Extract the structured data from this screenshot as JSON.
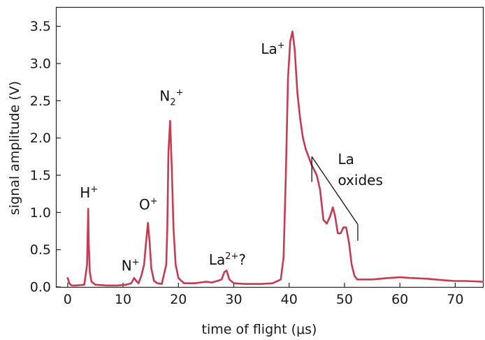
{
  "chart_data": {
    "type": "line",
    "xlabel": "time of flight (μs)",
    "ylabel": "signal amplitude (V)",
    "xlim": [
      -2,
      75
    ],
    "ylim": [
      0,
      3.75
    ],
    "x_ticks": [
      0,
      10,
      20,
      30,
      40,
      50,
      60,
      70
    ],
    "x_tick_labels": [
      "0",
      "10",
      "20",
      "30",
      "40",
      "50",
      "60",
      "70"
    ],
    "y_ticks": [
      0,
      0.5,
      1.0,
      1.5,
      2.0,
      2.5,
      3.0,
      3.5
    ],
    "y_tick_labels": [
      "0.0",
      "0.5",
      "1.0",
      "1.5",
      "2.0",
      "2.5",
      "3.0",
      "3.5"
    ],
    "grid": false,
    "series": [
      {
        "color": "#c83a52",
        "x": [
          0,
          0.3,
          0.7,
          1.5,
          3.0,
          3.5,
          3.7,
          3.8,
          4.0,
          4.3,
          5.0,
          7,
          9,
          10.5,
          11.5,
          12.0,
          12.4,
          12.8,
          13.3,
          13.8,
          14.1,
          14.5,
          14.8,
          15.1,
          15.6,
          16.2,
          17.0,
          17.8,
          18.0,
          18.2,
          18.5,
          18.8,
          19.1,
          19.5,
          20.0,
          21,
          23,
          25,
          26,
          27,
          27.8,
          28.3,
          28.7,
          29.2,
          30,
          32,
          35,
          37,
          38.5,
          39.0,
          39.4,
          39.8,
          40.2,
          40.6,
          41.0,
          41.5,
          42.0,
          42.5,
          43.0,
          44.0,
          45.0,
          45.6,
          46.2,
          46.8,
          47.4,
          47.9,
          48.3,
          48.8,
          49.3,
          49.8,
          50.3,
          50.8,
          51.3,
          51.8,
          52.3,
          53,
          55,
          58,
          60,
          62,
          65,
          68,
          70,
          72,
          75
        ],
        "values": [
          0.12,
          0.05,
          0.02,
          0.02,
          0.03,
          0.3,
          1.05,
          0.6,
          0.2,
          0.07,
          0.03,
          0.02,
          0.02,
          0.03,
          0.05,
          0.12,
          0.08,
          0.05,
          0.15,
          0.3,
          0.55,
          0.86,
          0.6,
          0.25,
          0.08,
          0.05,
          0.04,
          0.3,
          0.8,
          1.8,
          2.23,
          1.6,
          0.8,
          0.3,
          0.12,
          0.05,
          0.05,
          0.07,
          0.06,
          0.08,
          0.1,
          0.2,
          0.22,
          0.1,
          0.05,
          0.04,
          0.04,
          0.05,
          0.1,
          0.4,
          1.5,
          2.8,
          3.3,
          3.43,
          3.2,
          2.6,
          2.25,
          2.0,
          1.85,
          1.65,
          1.5,
          1.3,
          0.9,
          0.85,
          0.95,
          1.07,
          0.95,
          0.72,
          0.72,
          0.8,
          0.8,
          0.6,
          0.3,
          0.15,
          0.1,
          0.1,
          0.1,
          0.12,
          0.13,
          0.12,
          0.11,
          0.09,
          0.08,
          0.08,
          0.07
        ]
      }
    ],
    "annotations": [
      {
        "base": "H",
        "sup": "+",
        "sub": "",
        "tail": "",
        "x": 2.2,
        "y": 1.2
      },
      {
        "base": "N",
        "sup": "+",
        "sub": "",
        "tail": "",
        "x": 9.7,
        "y": 0.22
      },
      {
        "base": "O",
        "sup": "+",
        "sub": "",
        "tail": "",
        "x": 12.9,
        "y": 1.04
      },
      {
        "base": "N",
        "sup": "+",
        "sub": "2",
        "tail": "",
        "x": 16.6,
        "y": 2.5
      },
      {
        "base": "La",
        "sup": "2+",
        "sub": "",
        "tail": "?",
        "x": 25.5,
        "y": 0.3
      },
      {
        "base": "La",
        "sup": "+",
        "sub": "",
        "tail": "",
        "x": 34.9,
        "y": 3.13
      },
      {
        "base": "La",
        "sup": "",
        "sub": "",
        "tail": "",
        "x": 48.8,
        "y": 1.65
      },
      {
        "base": "oxides",
        "sup": "",
        "sub": "",
        "tail": "",
        "x": 48.8,
        "y": 1.37
      }
    ],
    "bracket": {
      "x1": 44.1,
      "y1": 1.75,
      "x2": 52.4,
      "y2": 0.84,
      "tick_to_y1": 1.41,
      "tick_to_y2": 0.62
    }
  }
}
